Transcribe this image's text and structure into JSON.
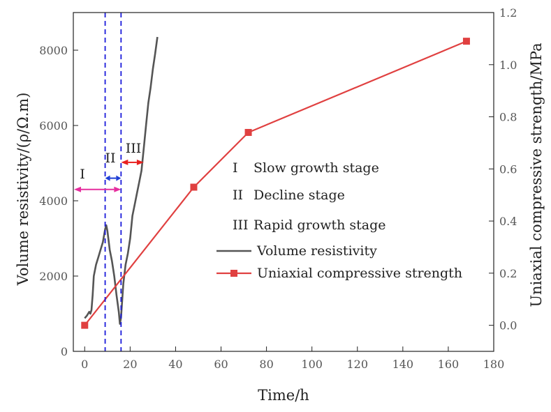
{
  "chart_data": {
    "type": "line",
    "xlabel": "Time/h",
    "ylabel_left": "Volume resistivity/(ρ/Ω.m)",
    "ylabel_right": "Uniaxial compressive strength/MPa",
    "xlim": [
      -5,
      180
    ],
    "ylim_left": [
      0,
      9000
    ],
    "ylim_right": [
      -0.1,
      1.2
    ],
    "x_ticks": [
      0,
      20,
      40,
      60,
      80,
      100,
      120,
      140,
      160,
      180
    ],
    "y_left_ticks": [
      0,
      2000,
      4000,
      6000,
      8000
    ],
    "y_right_ticks": [
      0.0,
      0.2,
      0.4,
      0.6,
      0.8,
      1.0,
      1.2
    ],
    "y_right_tick_labels": [
      "0.0",
      "0.2",
      "0.4",
      "0.6",
      "0.8",
      "1.0",
      "1.2"
    ],
    "colors": {
      "resistivity": "#555555",
      "strength": "#e04040",
      "divider": "#1a1adb",
      "stage1": "#e62e9e",
      "stage2": "#1f3fd6",
      "stage3": "#e8201f"
    },
    "series": [
      {
        "name": "Volume resistivity",
        "axis": "left",
        "x": [
          0,
          1,
          2,
          2.5,
          3,
          3.5,
          4,
          5,
          6,
          7,
          8,
          9,
          9.5,
          10,
          11,
          12,
          13,
          14,
          15,
          15.5,
          16,
          17,
          18,
          19,
          20,
          21,
          22,
          23,
          24,
          25,
          26,
          27,
          28,
          29,
          30,
          31,
          32
        ],
        "values": [
          880,
          950,
          1050,
          1000,
          1100,
          1500,
          2000,
          2300,
          2500,
          2700,
          2900,
          3250,
          3350,
          3200,
          2700,
          2400,
          2000,
          1500,
          1050,
          730,
          900,
          1800,
          2300,
          2600,
          3000,
          3600,
          3900,
          4200,
          4500,
          4800,
          5400,
          6000,
          6600,
          7000,
          7500,
          7900,
          8350
        ]
      },
      {
        "name": "Uniaxial compressive strength",
        "axis": "right",
        "x": [
          0,
          48,
          72,
          168
        ],
        "values": [
          0.0,
          0.53,
          0.74,
          1.09
        ]
      }
    ],
    "stage_dividers_x": [
      9,
      16
    ],
    "stages": [
      {
        "numeral": "I",
        "label": "Slow growth stage",
        "x_range": [
          -5,
          16
        ],
        "y_level": 4300
      },
      {
        "numeral": "II",
        "label": "Decline stage",
        "x_range": [
          9,
          16
        ],
        "y_level": 4600
      },
      {
        "numeral": "III",
        "label": "Rapid growth stage",
        "x_range": [
          16,
          26
        ],
        "y_level": 5020
      }
    ],
    "legend": [
      {
        "label": "Volume resistivity",
        "style": "line"
      },
      {
        "label": "Uniaxial compressive strength",
        "style": "line-square"
      }
    ]
  }
}
